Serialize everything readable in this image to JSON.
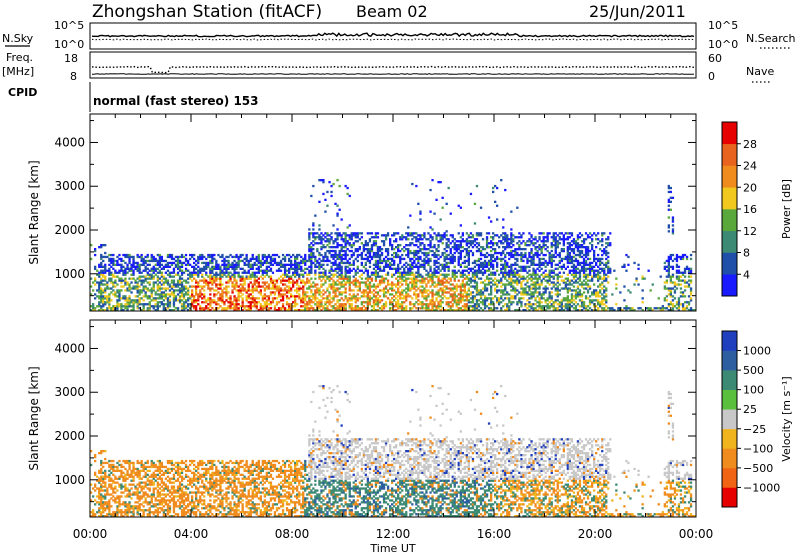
{
  "header": {
    "title": "Zhongshan Station (fitACF)",
    "beam": "Beam 02",
    "date": "25/Jun/2011"
  },
  "strips": {
    "nsky_label": "N.Sky",
    "nsearch_label": "N.Search",
    "freq_label_1": "Freq.",
    "freq_label_2": "[MHz]",
    "nave_label": "Nave",
    "cpid_label": "CPID",
    "cpid_text": "normal (fast stereo) 153",
    "nsky_ticks": [
      "10^5",
      "10^0"
    ],
    "nsearch_ticks": [
      "10^5",
      "10^0"
    ],
    "freq_ticks": [
      "18",
      "8"
    ],
    "nave_ticks": [
      "60",
      "0"
    ]
  },
  "colors": {
    "power_scale": [
      "#1a1aff",
      "#1f4fa8",
      "#3c8a73",
      "#5aa83c",
      "#f0c81e",
      "#f08c1e",
      "#e8641e",
      "#e60000"
    ],
    "velocity_scale": [
      "#1f3fbf",
      "#2d5fa0",
      "#3c8a73",
      "#5abf3c",
      "#c8c8c8",
      "#f0b41e",
      "#f08c1e",
      "#f06414",
      "#e60000"
    ],
    "frame": "#000000"
  },
  "chart_data": [
    {
      "type": "heatmap",
      "quantity": "Power",
      "ylabel": "Slant Range [km]",
      "ylim": [
        150,
        4650
      ],
      "yticks": [
        1000,
        2000,
        3000,
        4000
      ],
      "xlim": [
        0,
        24
      ],
      "colorbar_label": "Power [dB]",
      "colorbar_ticks": [
        4,
        8,
        12,
        16,
        20,
        24,
        28
      ],
      "colorbar_range": [
        0,
        32
      ]
    },
    {
      "type": "heatmap",
      "quantity": "Velocity",
      "ylabel": "Slant Range [km]",
      "ylim": [
        150,
        4650
      ],
      "yticks": [
        1000,
        2000,
        3000,
        4000
      ],
      "xlim": [
        0,
        24
      ],
      "colorbar_label": "Velocity [m s⁻¹]",
      "colorbar_ticks": [
        "1000",
        "500",
        "100",
        "25",
        "−25",
        "−100",
        "−500",
        "−1000"
      ]
    }
  ],
  "xaxis": {
    "ticks": [
      "00:00",
      "04:00",
      "08:00",
      "12:00",
      "16:00",
      "20:00",
      "00:00"
    ],
    "tick_hours": [
      0,
      4,
      8,
      12,
      16,
      20,
      24
    ],
    "label": "Time UT"
  }
}
